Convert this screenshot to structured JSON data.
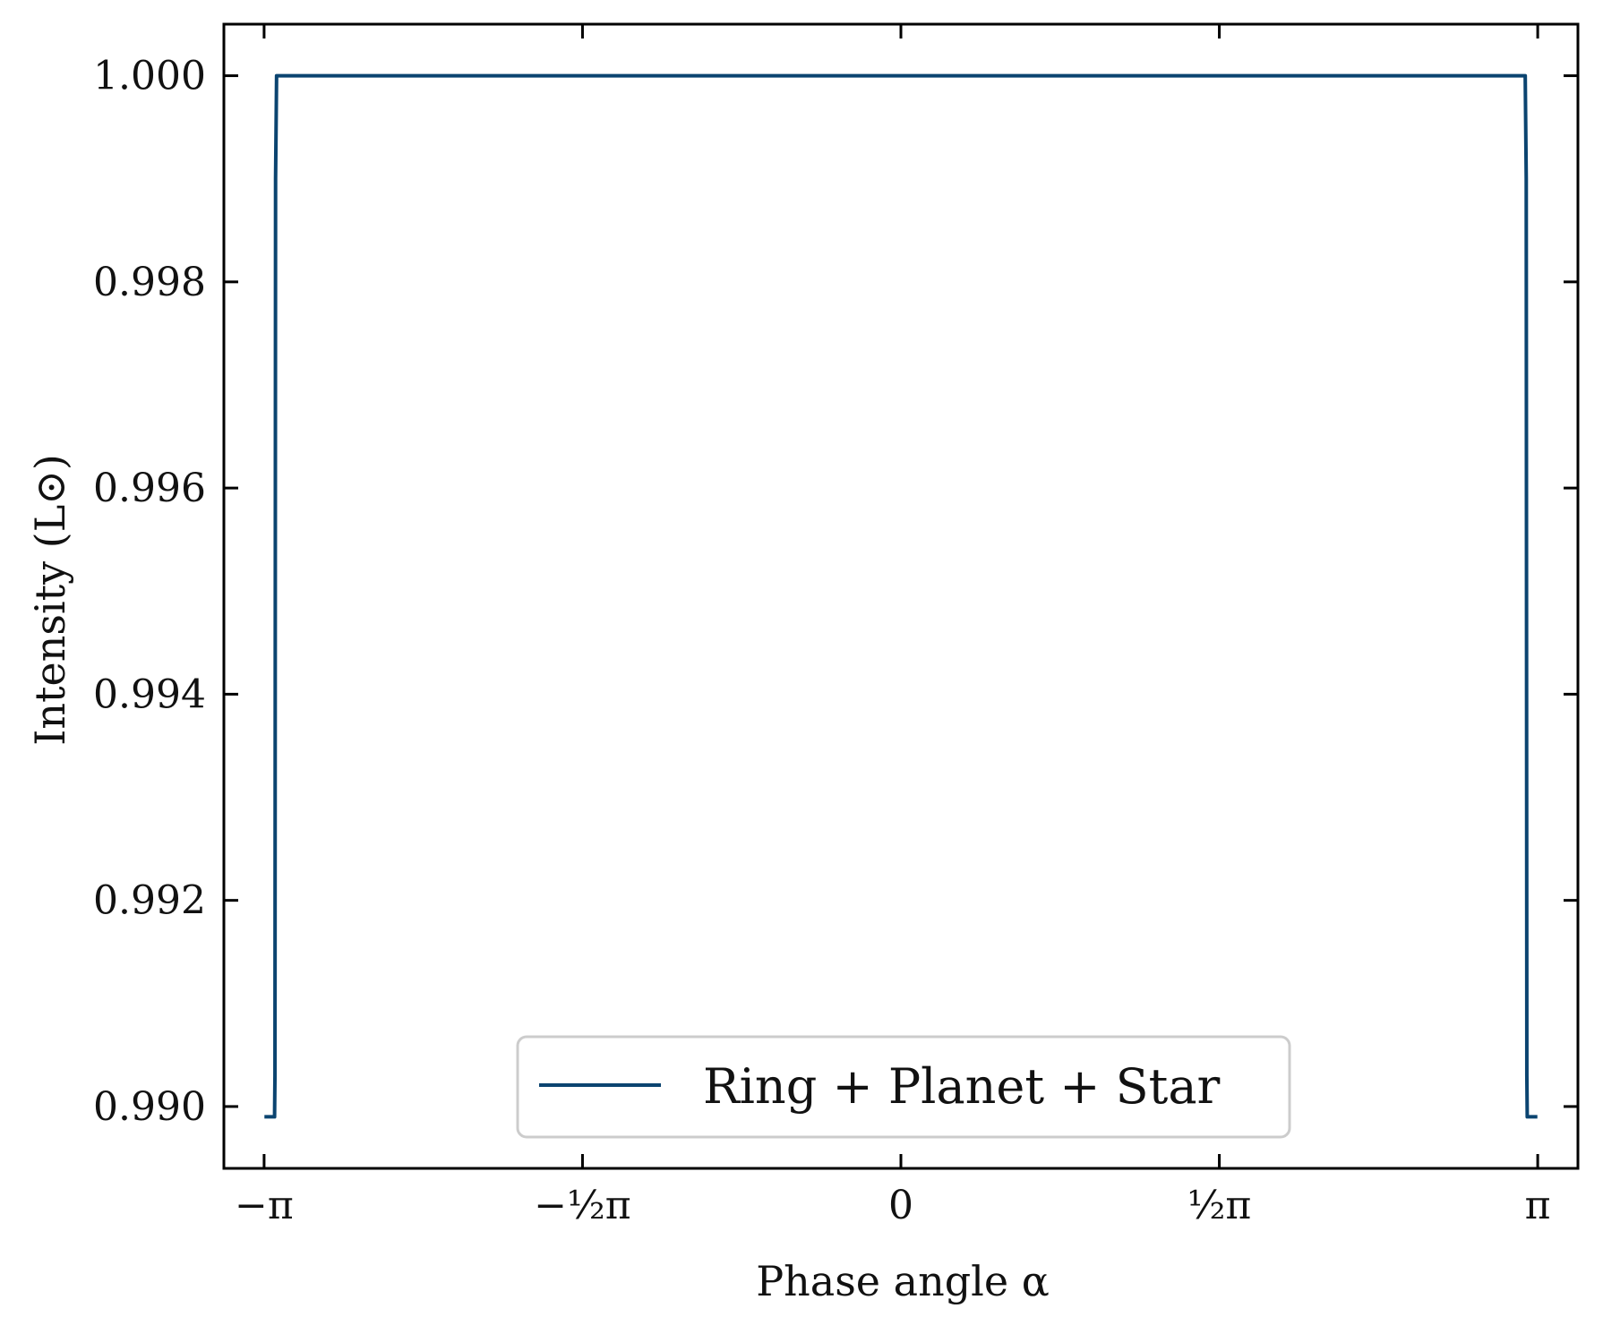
{
  "chart_data": {
    "type": "line",
    "xlabel": "Phase angle α",
    "ylabel": "Intensity (L⊙)",
    "xlim": [
      -3.34,
      3.34
    ],
    "ylim": [
      0.9894,
      1.0005
    ],
    "x_ticks": [
      {
        "value": -3.14159,
        "label": "−π"
      },
      {
        "value": -1.5708,
        "label": "−½π"
      },
      {
        "value": 0,
        "label": "0"
      },
      {
        "value": 1.5708,
        "label": "½π"
      },
      {
        "value": 3.14159,
        "label": "π"
      }
    ],
    "y_ticks": [
      {
        "value": 0.99,
        "label": "0.990"
      },
      {
        "value": 0.992,
        "label": "0.992"
      },
      {
        "value": 0.994,
        "label": "0.994"
      },
      {
        "value": 0.996,
        "label": "0.996"
      },
      {
        "value": 0.998,
        "label": "0.998"
      },
      {
        "value": 1.0,
        "label": "1.000"
      }
    ],
    "grid": false,
    "legend_position": "lower-center",
    "series": [
      {
        "name": "Ring + Planet + Star",
        "color": "#0b4470",
        "x": [
          -3.14,
          -3.09,
          -3.088,
          -3.085,
          -3.08,
          -3.07,
          0,
          3.07,
          3.08,
          3.085,
          3.088,
          3.09,
          3.14
        ],
        "y": [
          0.9899,
          0.9899,
          0.9903,
          0.999,
          1.0,
          1.0,
          1.0,
          1.0,
          1.0,
          0.999,
          0.9903,
          0.9899,
          0.9899
        ]
      }
    ]
  }
}
